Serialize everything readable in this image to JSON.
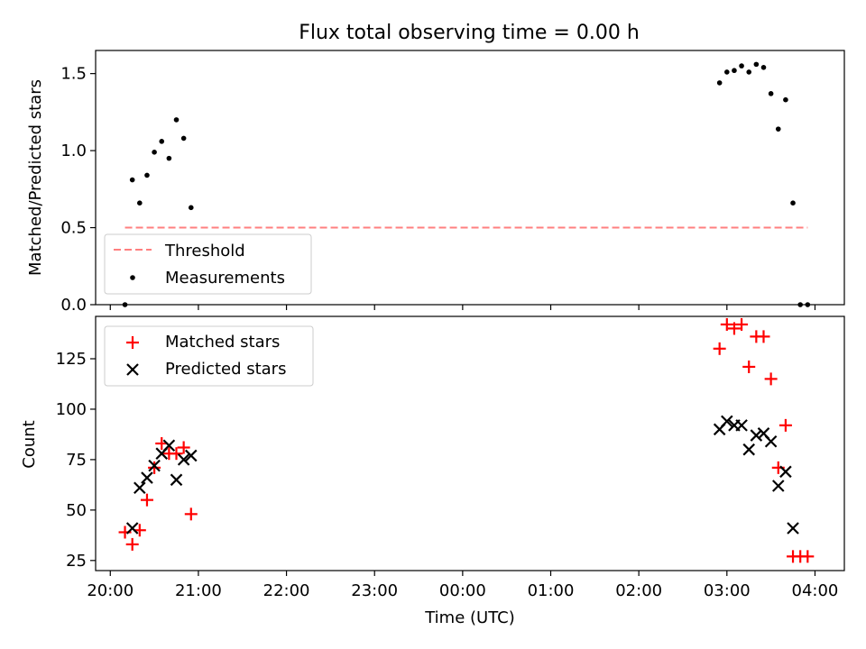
{
  "title": "Flux total observing time = 0.00 h",
  "colors": {
    "threshold": "#ff7f7f",
    "measurement": "#000000",
    "matched": "#ff0000",
    "predicted": "#000000",
    "axes": "#000000"
  },
  "chart_data": [
    {
      "type": "scatter",
      "panel": "top",
      "ylabel": "Matched/Predicted stars",
      "xlabel": "",
      "ylim": [
        0,
        1.65
      ],
      "y_ticks": [
        "0.0",
        "0.5",
        "1.0",
        "1.5"
      ],
      "legend": {
        "placement": "lower-left",
        "entries": [
          "Threshold",
          "Measurements"
        ]
      },
      "threshold": {
        "name": "Threshold",
        "value": 0.5,
        "x_start": "20:10",
        "x_end": "03:55",
        "style": "dashed"
      },
      "series": [
        {
          "name": "Measurements",
          "marker": "dot",
          "points": [
            [
              "20:10",
              0.0
            ],
            [
              "20:15",
              0.81
            ],
            [
              "20:20",
              0.66
            ],
            [
              "20:25",
              0.84
            ],
            [
              "20:30",
              0.99
            ],
            [
              "20:35",
              1.06
            ],
            [
              "20:40",
              0.95
            ],
            [
              "20:45",
              1.2
            ],
            [
              "20:50",
              1.08
            ],
            [
              "20:55",
              0.63
            ],
            [
              "02:55",
              1.44
            ],
            [
              "03:00",
              1.51
            ],
            [
              "03:05",
              1.52
            ],
            [
              "03:10",
              1.55
            ],
            [
              "03:15",
              1.51
            ],
            [
              "03:20",
              1.56
            ],
            [
              "03:25",
              1.54
            ],
            [
              "03:30",
              1.37
            ],
            [
              "03:35",
              1.14
            ],
            [
              "03:40",
              1.33
            ],
            [
              "03:45",
              0.66
            ],
            [
              "03:50",
              0.0
            ],
            [
              "03:55",
              0.0
            ]
          ]
        }
      ]
    },
    {
      "type": "scatter",
      "panel": "bottom",
      "ylabel": "Count",
      "xlabel": "Time (UTC)",
      "xlim": [
        "19:50",
        "04:20"
      ],
      "ylim": [
        20,
        146
      ],
      "y_ticks": [
        "25",
        "50",
        "75",
        "100",
        "125"
      ],
      "x_ticks": [
        "20:00",
        "21:00",
        "22:00",
        "23:00",
        "00:00",
        "01:00",
        "02:00",
        "03:00",
        "04:00"
      ],
      "legend": {
        "placement": "top-left",
        "entries": [
          "Matched stars",
          "Predicted stars"
        ]
      },
      "series": [
        {
          "name": "Matched stars",
          "marker": "plus",
          "points": [
            [
              "20:10",
              39
            ],
            [
              "20:15",
              33
            ],
            [
              "20:20",
              40
            ],
            [
              "20:25",
              55
            ],
            [
              "20:30",
              71
            ],
            [
              "20:35",
              83
            ],
            [
              "20:40",
              78
            ],
            [
              "20:45",
              78
            ],
            [
              "20:50",
              81
            ],
            [
              "20:55",
              48
            ],
            [
              "02:55",
              130
            ],
            [
              "03:00",
              142
            ],
            [
              "03:05",
              140
            ],
            [
              "03:10",
              142
            ],
            [
              "03:15",
              121
            ],
            [
              "03:20",
              136
            ],
            [
              "03:25",
              136
            ],
            [
              "03:30",
              115
            ],
            [
              "03:35",
              71
            ],
            [
              "03:40",
              92
            ],
            [
              "03:45",
              27
            ],
            [
              "03:50",
              27
            ],
            [
              "03:55",
              27
            ]
          ]
        },
        {
          "name": "Predicted stars",
          "marker": "x",
          "points": [
            [
              "20:15",
              41
            ],
            [
              "20:20",
              61
            ],
            [
              "20:25",
              66
            ],
            [
              "20:30",
              72
            ],
            [
              "20:35",
              78
            ],
            [
              "20:40",
              82
            ],
            [
              "20:45",
              65
            ],
            [
              "20:50",
              75
            ],
            [
              "20:55",
              77
            ],
            [
              "02:55",
              90
            ],
            [
              "03:00",
              94
            ],
            [
              "03:05",
              92
            ],
            [
              "03:10",
              92
            ],
            [
              "03:15",
              80
            ],
            [
              "03:20",
              87
            ],
            [
              "03:25",
              88
            ],
            [
              "03:30",
              84
            ],
            [
              "03:35",
              62
            ],
            [
              "03:40",
              69
            ],
            [
              "03:45",
              41
            ]
          ]
        }
      ]
    }
  ]
}
